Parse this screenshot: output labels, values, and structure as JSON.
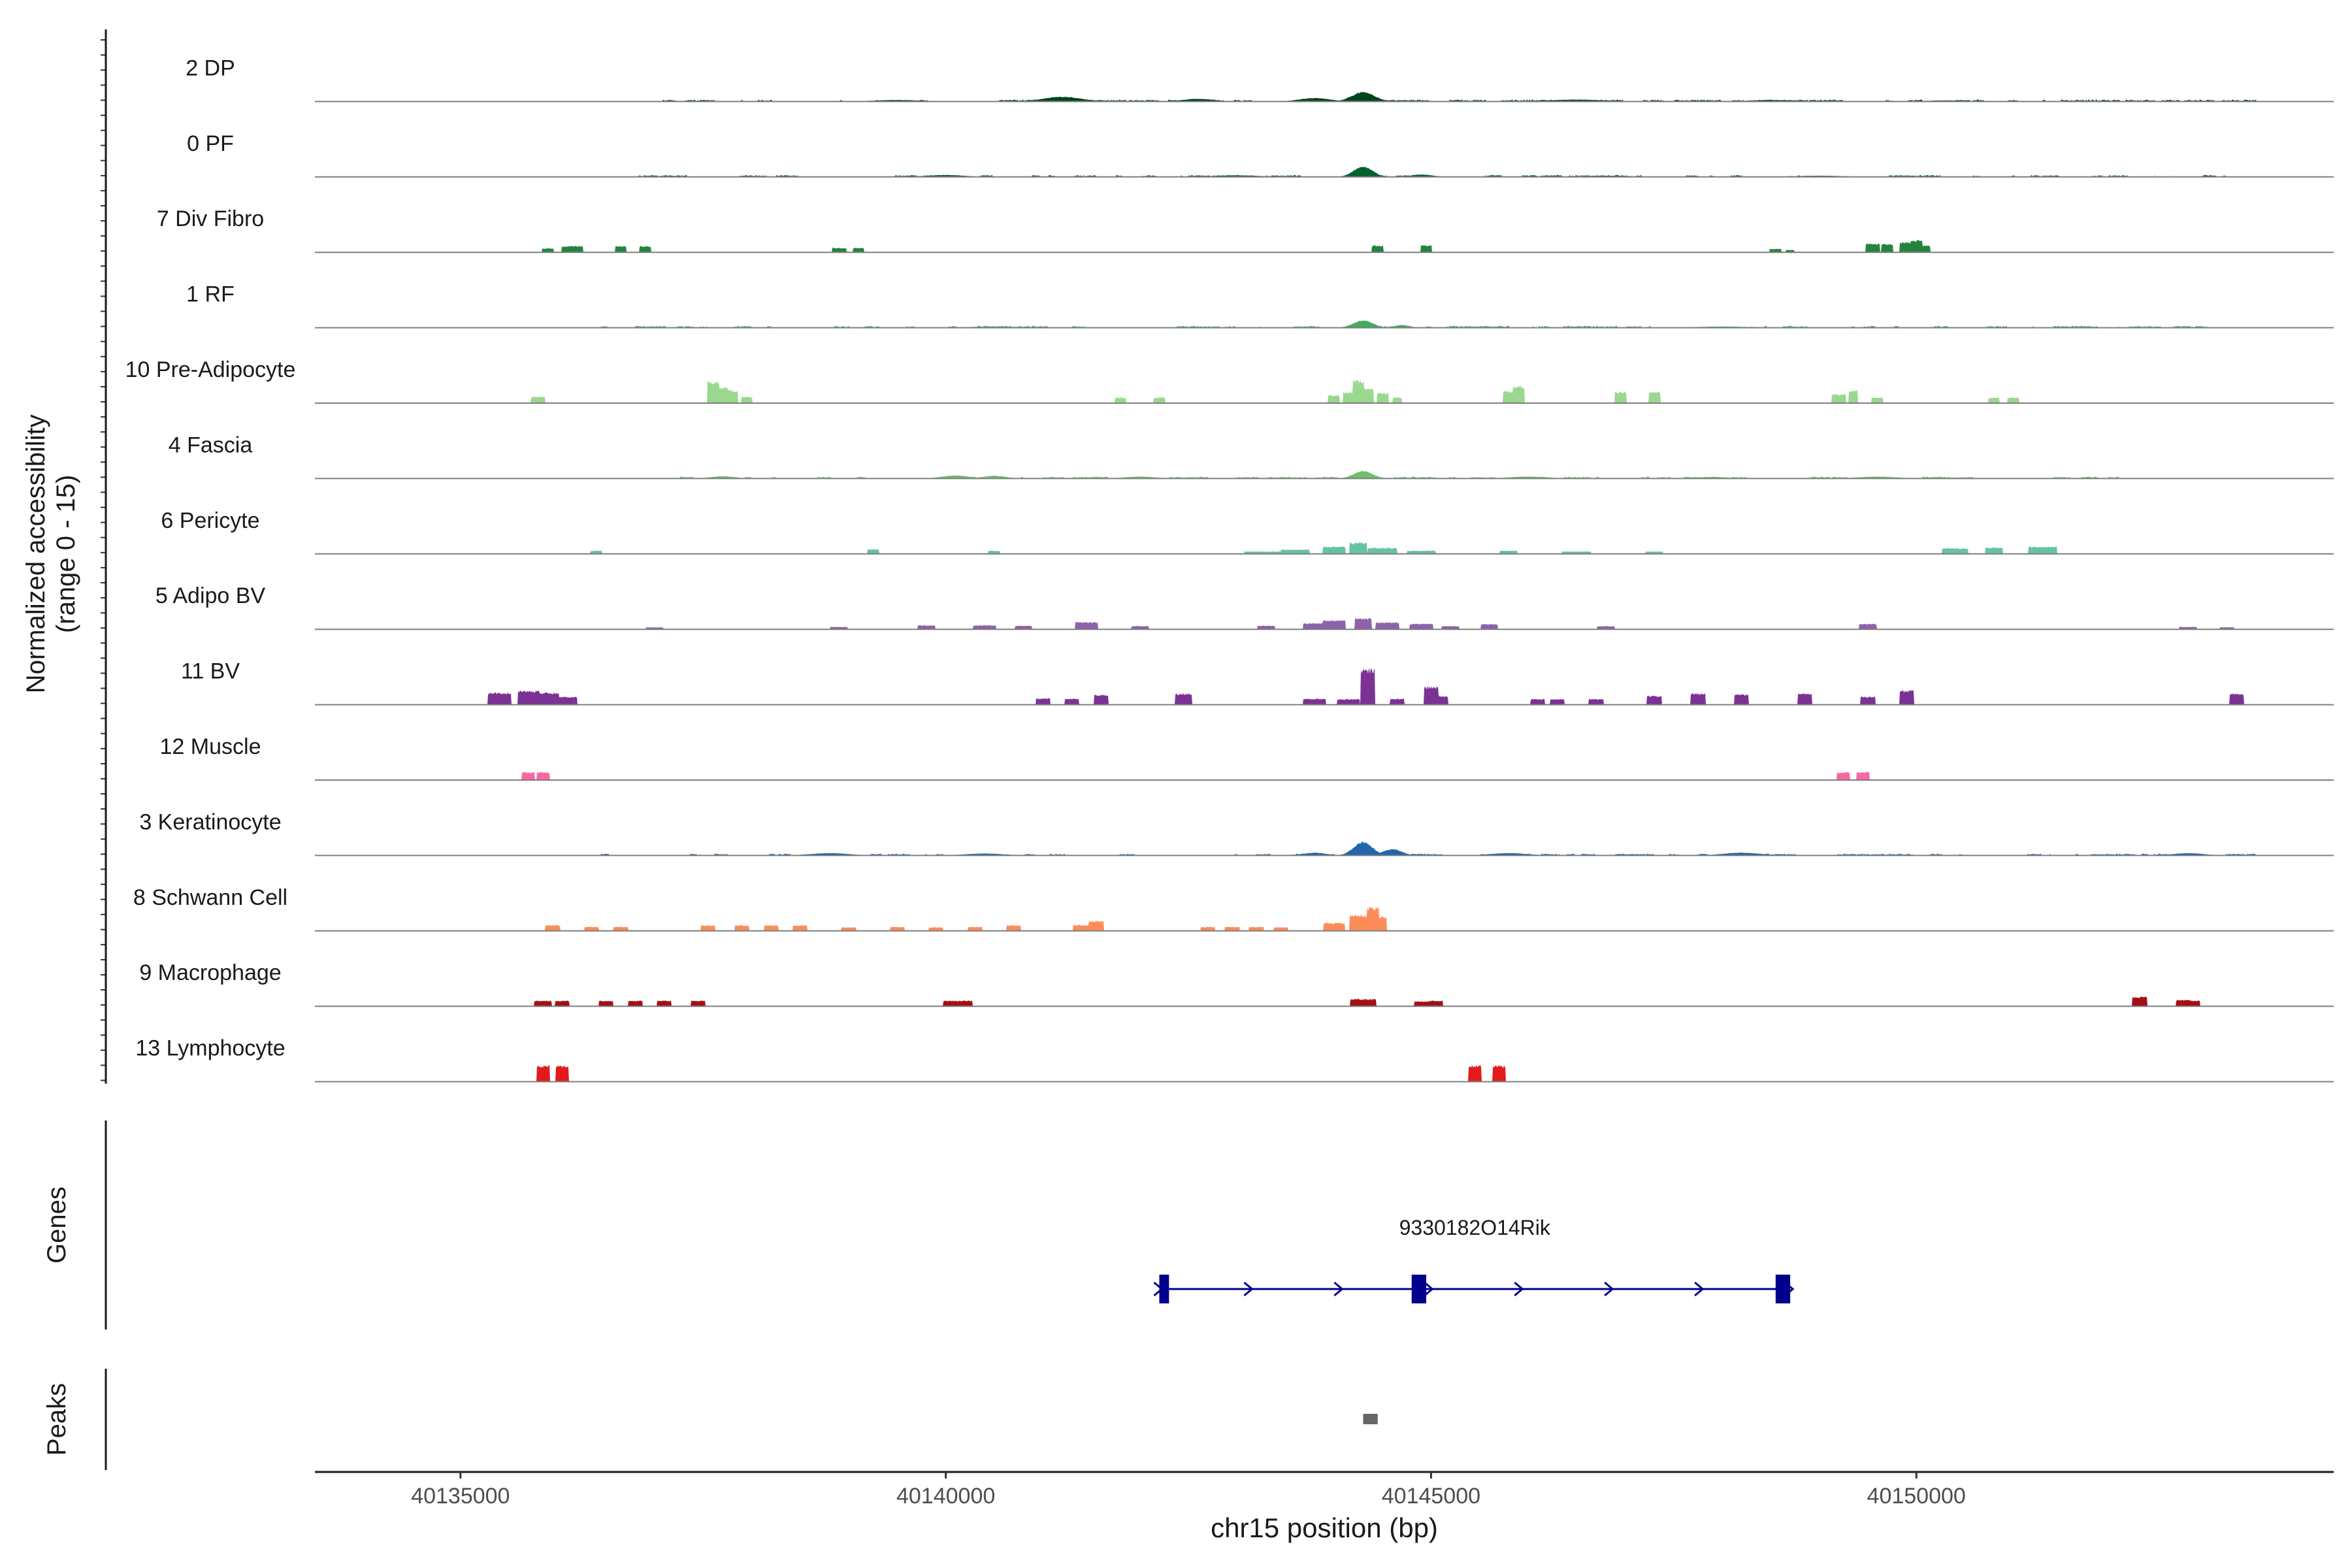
{
  "chart_data": {
    "type": "coverage",
    "title": "",
    "ylabel": [
      "Normalized accessibility",
      "(range 0 - 15)"
    ],
    "ylim": [
      0,
      15
    ],
    "xlabel": "chr15 position (bp)",
    "xlim": [
      40133500,
      40154300
    ],
    "xticks": [
      40135000,
      40140000,
      40145000,
      40150000
    ],
    "xtick_labels": [
      "40135000",
      "40140000",
      "40145000",
      "40150000"
    ],
    "tracks": [
      {
        "name": "2 DP",
        "color": "#00441b",
        "style": "continuous",
        "range": [
          40136900,
          40153500
        ],
        "peaks": [
          [
            40144300,
            2.4,
            300
          ],
          [
            40141200,
            1.2,
            500
          ],
          [
            40143800,
            0.9,
            400
          ],
          [
            40142600,
            0.7,
            400
          ],
          [
            40139500,
            0.4,
            600
          ],
          [
            40146500,
            0.5,
            700
          ],
          [
            40148500,
            0.4,
            600
          ],
          [
            40150300,
            0.3,
            500
          ]
        ]
      },
      {
        "name": "0 PF",
        "color": "#00612d",
        "style": "continuous",
        "range": [
          40136500,
          40153300
        ],
        "peaks": [
          [
            40144300,
            2.6,
            250
          ],
          [
            40144900,
            0.6,
            300
          ],
          [
            40140000,
            0.5,
            500
          ],
          [
            40143000,
            0.4,
            600
          ],
          [
            40146800,
            0.3,
            700
          ],
          [
            40149000,
            0.3,
            700
          ]
        ]
      },
      {
        "name": "7 Div Fibro",
        "color": "#23843f",
        "style": "blocks",
        "peaks": [
          [
            40135900,
            1.0,
            80
          ],
          [
            40136100,
            1.5,
            80
          ],
          [
            40136200,
            1.6,
            80
          ],
          [
            40136650,
            1.6,
            80
          ],
          [
            40136900,
            1.5,
            80
          ],
          [
            40138900,
            1.1,
            100
          ],
          [
            40139100,
            1.1,
            80
          ],
          [
            40144450,
            1.7,
            80
          ],
          [
            40144950,
            1.8,
            80
          ],
          [
            40148550,
            0.9,
            80
          ],
          [
            40148700,
            0.6,
            60
          ],
          [
            40149550,
            2.2,
            100
          ],
          [
            40149700,
            2.1,
            80
          ],
          [
            40149900,
            2.5,
            100
          ],
          [
            40150000,
            3.0,
            80
          ],
          [
            40150100,
            1.8,
            60
          ]
        ]
      },
      {
        "name": "1 RF",
        "color": "#41ab5d",
        "style": "continuous",
        "range": [
          40136200,
          40153000
        ],
        "peaks": [
          [
            40144300,
            1.9,
            250
          ],
          [
            40144700,
            0.7,
            200
          ],
          [
            40140500,
            0.3,
            700
          ],
          [
            40148000,
            0.3,
            700
          ]
        ]
      },
      {
        "name": "10 Pre-Adipocyte",
        "color": "#9ad88f",
        "style": "blocks",
        "peaks": [
          [
            40135800,
            1.6,
            100
          ],
          [
            40137600,
            5.5,
            80
          ],
          [
            40137700,
            4.0,
            80
          ],
          [
            40137800,
            3.2,
            80
          ],
          [
            40137950,
            1.6,
            80
          ],
          [
            40141800,
            1.4,
            80
          ],
          [
            40142200,
            1.4,
            80
          ],
          [
            40144000,
            2.0,
            80
          ],
          [
            40144150,
            2.8,
            80
          ],
          [
            40144250,
            5.8,
            80
          ],
          [
            40144350,
            3.8,
            80
          ],
          [
            40144500,
            2.6,
            80
          ],
          [
            40144650,
            1.4,
            60
          ],
          [
            40145800,
            3.0,
            80
          ],
          [
            40145900,
            4.2,
            80
          ],
          [
            40146950,
            2.8,
            80
          ],
          [
            40147300,
            2.8,
            80
          ],
          [
            40149200,
            2.2,
            100
          ],
          [
            40149350,
            3.2,
            60
          ],
          [
            40149600,
            1.4,
            80
          ],
          [
            40150800,
            1.4,
            80
          ],
          [
            40151000,
            1.4,
            80
          ]
        ]
      },
      {
        "name": "4 Fascia",
        "color": "#6dbf6a",
        "style": "continuous",
        "range": [
          40136900,
          40152300
        ],
        "peaks": [
          [
            40144300,
            1.9,
            250
          ],
          [
            40140100,
            0.8,
            350
          ],
          [
            40140500,
            0.7,
            300
          ],
          [
            40137700,
            0.6,
            300
          ],
          [
            40142000,
            0.5,
            400
          ],
          [
            40146000,
            0.5,
            500
          ],
          [
            40149600,
            0.5,
            500
          ],
          [
            40147900,
            0.4,
            400
          ]
        ]
      },
      {
        "name": "6 Pericyte",
        "color": "#66c2a5",
        "style": "blocks",
        "peaks": [
          [
            40136400,
            0.8,
            80
          ],
          [
            40139250,
            1.2,
            80
          ],
          [
            40140500,
            0.8,
            80
          ],
          [
            40143300,
            0.6,
            300
          ],
          [
            40143600,
            1.1,
            200
          ],
          [
            40144000,
            1.8,
            160
          ],
          [
            40144250,
            2.8,
            120
          ],
          [
            40144500,
            1.5,
            200
          ],
          [
            40144900,
            0.8,
            200
          ],
          [
            40145800,
            0.8,
            120
          ],
          [
            40146500,
            0.6,
            200
          ],
          [
            40147300,
            0.6,
            120
          ],
          [
            40150400,
            1.4,
            180
          ],
          [
            40150800,
            1.6,
            120
          ],
          [
            40151300,
            1.8,
            200
          ]
        ]
      },
      {
        "name": "5 Adipo BV",
        "color": "#8c62aa",
        "style": "blocks",
        "peaks": [
          [
            40137000,
            0.5,
            120
          ],
          [
            40138900,
            0.6,
            120
          ],
          [
            40139800,
            1.0,
            120
          ],
          [
            40140400,
            1.0,
            160
          ],
          [
            40140800,
            0.9,
            120
          ],
          [
            40141450,
            1.8,
            160
          ],
          [
            40142000,
            0.8,
            120
          ],
          [
            40143300,
            0.9,
            120
          ],
          [
            40143800,
            1.5,
            160
          ],
          [
            40144000,
            2.3,
            160
          ],
          [
            40144300,
            2.8,
            120
          ],
          [
            40144550,
            1.7,
            160
          ],
          [
            40144900,
            1.4,
            160
          ],
          [
            40145200,
            0.8,
            120
          ],
          [
            40145600,
            1.3,
            120
          ],
          [
            40146800,
            0.8,
            120
          ],
          [
            40149500,
            1.4,
            120
          ],
          [
            40152800,
            0.6,
            120
          ],
          [
            40153200,
            0.5,
            100
          ]
        ]
      },
      {
        "name": "11 BV",
        "color": "#7b3294",
        "style": "blocks",
        "peaks": [
          [
            40135400,
            3.0,
            160
          ],
          [
            40135700,
            3.5,
            150
          ],
          [
            40135900,
            3.0,
            150
          ],
          [
            40136100,
            2.0,
            140
          ],
          [
            40141000,
            1.6,
            100
          ],
          [
            40141300,
            1.5,
            100
          ],
          [
            40141600,
            2.5,
            100
          ],
          [
            40142450,
            2.8,
            120
          ],
          [
            40143800,
            1.5,
            160
          ],
          [
            40144150,
            1.4,
            160
          ],
          [
            40144350,
            9.0,
            100
          ],
          [
            40144650,
            1.5,
            100
          ],
          [
            40145000,
            4.5,
            100
          ],
          [
            40145100,
            2.2,
            100
          ],
          [
            40146100,
            1.4,
            100
          ],
          [
            40146300,
            1.4,
            100
          ],
          [
            40146700,
            1.4,
            100
          ],
          [
            40147300,
            2.2,
            100
          ],
          [
            40147750,
            2.8,
            100
          ],
          [
            40148200,
            2.6,
            100
          ],
          [
            40148850,
            2.8,
            100
          ],
          [
            40149500,
            2.0,
            100
          ],
          [
            40149900,
            3.6,
            100
          ],
          [
            40153300,
            2.8,
            100
          ]
        ]
      },
      {
        "name": "12 Muscle",
        "color": "#f768a1",
        "style": "blocks",
        "peaks": [
          [
            40135700,
            2.0,
            90
          ],
          [
            40135850,
            2.0,
            90
          ],
          [
            40149250,
            2.0,
            90
          ],
          [
            40149450,
            2.0,
            90
          ]
        ]
      },
      {
        "name": "3 Keratinocyte",
        "color": "#2166ac",
        "style": "continuous",
        "range": [
          40136200,
          40153500
        ],
        "peaks": [
          [
            40144300,
            3.4,
            250
          ],
          [
            40144600,
            1.6,
            250
          ],
          [
            40143800,
            0.7,
            300
          ],
          [
            40138800,
            0.6,
            500
          ],
          [
            40140400,
            0.5,
            500
          ],
          [
            40145800,
            0.6,
            500
          ],
          [
            40148200,
            0.7,
            500
          ],
          [
            40152800,
            0.6,
            400
          ]
        ]
      },
      {
        "name": "8 Schwann Cell",
        "color": "#fc8d59",
        "style": "blocks",
        "peaks": [
          [
            40135950,
            1.4,
            100
          ],
          [
            40136350,
            1.0,
            100
          ],
          [
            40136650,
            1.0,
            100
          ],
          [
            40137550,
            1.4,
            100
          ],
          [
            40137900,
            1.4,
            100
          ],
          [
            40138200,
            1.4,
            100
          ],
          [
            40138500,
            1.4,
            100
          ],
          [
            40139000,
            0.9,
            100
          ],
          [
            40139500,
            1.0,
            100
          ],
          [
            40139900,
            0.9,
            100
          ],
          [
            40140300,
            1.0,
            100
          ],
          [
            40140700,
            1.4,
            100
          ],
          [
            40141400,
            1.5,
            120
          ],
          [
            40141550,
            2.5,
            100
          ],
          [
            40142700,
            1.0,
            100
          ],
          [
            40142950,
            1.0,
            100
          ],
          [
            40143200,
            1.0,
            100
          ],
          [
            40143450,
            0.9,
            100
          ],
          [
            40144000,
            2.0,
            150
          ],
          [
            40144250,
            4.0,
            120
          ],
          [
            40144400,
            6.0,
            80
          ],
          [
            40144500,
            3.5,
            60
          ]
        ]
      },
      {
        "name": "9 Macrophage",
        "color": "#a50f15",
        "style": "blocks",
        "peaks": [
          [
            40135850,
            1.4,
            120
          ],
          [
            40136050,
            1.4,
            100
          ],
          [
            40136500,
            1.4,
            100
          ],
          [
            40136800,
            1.4,
            100
          ],
          [
            40137100,
            1.4,
            100
          ],
          [
            40137450,
            1.4,
            100
          ],
          [
            40140050,
            1.4,
            100
          ],
          [
            40140200,
            1.4,
            100
          ],
          [
            40144300,
            1.8,
            180
          ],
          [
            40144900,
            1.2,
            100
          ],
          [
            40145050,
            1.4,
            100
          ],
          [
            40152300,
            2.4,
            100
          ],
          [
            40152750,
            1.6,
            100
          ],
          [
            40152850,
            1.4,
            100
          ]
        ]
      },
      {
        "name": "13 Lymphocyte",
        "color": "#e31a1c",
        "style": "blocks",
        "peaks": [
          [
            40135850,
            4.0,
            90
          ],
          [
            40136050,
            4.0,
            90
          ],
          [
            40145450,
            4.0,
            90
          ],
          [
            40145700,
            4.0,
            90
          ]
        ]
      }
    ],
    "genes": {
      "label": "Genes",
      "name": "9330182O14Rik",
      "color": "#00008b",
      "start": 40142200,
      "end": 40148700,
      "exons": [
        [
          40142200,
          40142300
        ],
        [
          40144800,
          40144950
        ],
        [
          40148550,
          40148700
        ]
      ],
      "strand": "+"
    },
    "peaks_track": {
      "label": "Peaks",
      "color": "#666666",
      "regions": [
        [
          40144300,
          40144450
        ]
      ]
    }
  }
}
